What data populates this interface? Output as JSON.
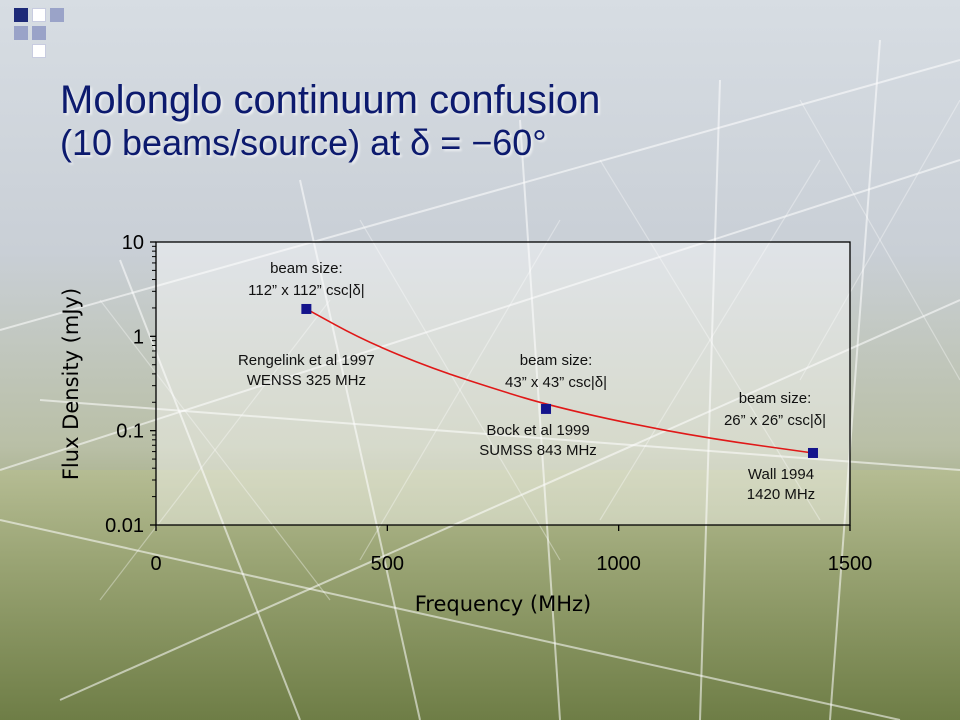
{
  "slide": {
    "title_line1": "Molonglo continuum confusion",
    "title_line2": "(10 beams/source) at δ = −60°"
  },
  "colors": {
    "title": "#0c1a6e",
    "marker": "#14148c",
    "curve": "#e01818",
    "deco_dark": "#1e2a78",
    "deco_light": "#9aa3c8"
  },
  "chart_data": {
    "type": "scatter",
    "xlabel": "Frequency (MHz)",
    "ylabel": "Flux Density (mJy)",
    "xlim": [
      0,
      1500
    ],
    "ylim": [
      0.01,
      10
    ],
    "yscale": "log",
    "grid": false,
    "xticks": [
      0,
      500,
      1000,
      1500
    ],
    "xtick_labels": [
      "0",
      "500",
      "1000",
      "1500"
    ],
    "yticks": [
      0.01,
      0.1,
      1,
      10
    ],
    "ytick_labels": [
      "0.01",
      "0.1",
      "1",
      "10"
    ],
    "points": [
      {
        "x": 325,
        "y": 1.95,
        "beam_label_1": "beam size:",
        "beam_label_2": "112” x 112” csc|δ|",
        "survey_label_1": "Rengelink et al 1997",
        "survey_label_2": "WENSS 325 MHz"
      },
      {
        "x": 843,
        "y": 0.17,
        "beam_label_1": "beam size:",
        "beam_label_2": "43” x 43” csc|δ|",
        "survey_label_1": "Bock et al 1999",
        "survey_label_2": "SUMSS 843 MHz"
      },
      {
        "x": 1420,
        "y": 0.058,
        "beam_label_1": "beam size:",
        "beam_label_2": "26” x 26” csc|δ|",
        "survey_label_1": "Wall 1994",
        "survey_label_2": "1420 MHz"
      }
    ],
    "fit_curve": {
      "x": [
        325,
        450,
        600,
        750,
        843,
        1000,
        1200,
        1420
      ],
      "y": [
        1.95,
        0.9,
        0.45,
        0.26,
        0.19,
        0.125,
        0.082,
        0.058
      ]
    }
  }
}
